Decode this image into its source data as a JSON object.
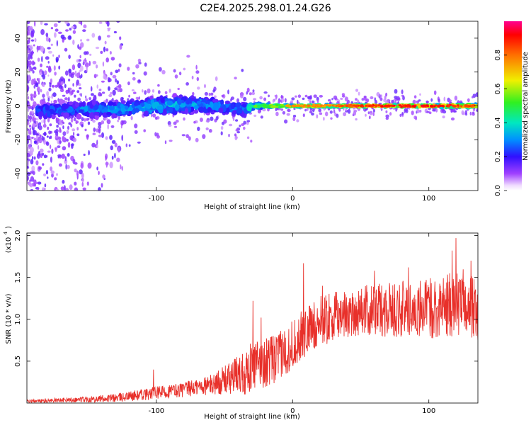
{
  "title": "C2E4.2025.298.01.24.G26",
  "chart_data": [
    {
      "type": "heatmap",
      "name": "spectrogram",
      "xlabel": "Height of straight line (km)",
      "ylabel": "Frequency (Hz)",
      "xlim": [
        -195,
        136
      ],
      "ylim": [
        -50,
        50
      ],
      "xticks": [
        -100,
        0,
        100
      ],
      "xtick_labels": [
        "-100",
        "0",
        "100"
      ],
      "yticks": [
        40,
        20,
        0,
        -20,
        -40
      ],
      "ytick_labels": [
        "40",
        "20",
        "0",
        "-20",
        "-40"
      ],
      "ridge": {
        "description": "dominant frequency band near 0 Hz",
        "x": [
          -185,
          -160,
          -130,
          -100,
          -70,
          -45,
          -35,
          -28,
          -20,
          0,
          25,
          50,
          75,
          100,
          125,
          136
        ],
        "center_hz": [
          -3,
          -2,
          -2,
          0,
          1,
          -1,
          -2,
          0,
          0,
          0,
          0,
          0,
          0,
          0,
          0,
          0
        ],
        "halfwidth_hz": [
          6,
          6,
          6,
          7,
          7,
          6,
          5,
          2.5,
          2,
          1.5,
          1.5,
          1.5,
          1.5,
          1.5,
          1.8,
          2
        ],
        "peak_amplitude": [
          0.3,
          0.3,
          0.35,
          0.4,
          0.35,
          0.3,
          0.35,
          0.55,
          0.65,
          0.8,
          0.8,
          0.9,
          0.95,
          0.95,
          0.9,
          0.85
        ]
      },
      "colorbar": {
        "label": "Normalized spectral amplitude",
        "range": [
          0,
          1
        ],
        "ticks": [
          0.0,
          0.2,
          0.4,
          0.6,
          0.8
        ],
        "tick_labels": [
          "0.0",
          "0.2",
          "0.4",
          "0.6",
          "0.8"
        ]
      }
    },
    {
      "type": "line",
      "name": "snr",
      "color": "#e8302a",
      "xlabel": "Height of straight line (km)",
      "ylabel": "SNR (10 * v/v)",
      "yscale_label": "(x10",
      "yscale_exp": "4",
      "ylabel_full": "SNR (10 * v/v) (x10^4)",
      "xlim": [
        -195,
        136
      ],
      "ylim": [
        0,
        2.03
      ],
      "xticks": [
        -100,
        0,
        100
      ],
      "xtick_labels": [
        "-100",
        "0",
        "100"
      ],
      "yticks": [
        0.5,
        1.0,
        1.5,
        2.0
      ],
      "ytick_labels": [
        "0.5",
        "1.0",
        "1.5",
        "2.0"
      ],
      "envelope": {
        "x": [
          -195,
          -160,
          -130,
          -110,
          -80,
          -60,
          -45,
          -35,
          -28,
          -20,
          -10,
          0,
          10,
          20,
          35,
          50,
          70,
          90,
          110,
          125,
          136
        ],
        "mean": [
          0.02,
          0.04,
          0.06,
          0.1,
          0.16,
          0.22,
          0.3,
          0.38,
          0.45,
          0.48,
          0.55,
          0.7,
          0.85,
          0.98,
          1.05,
          1.1,
          1.12,
          1.12,
          1.15,
          1.2,
          1.1
        ],
        "spread": [
          0.02,
          0.03,
          0.05,
          0.07,
          0.09,
          0.12,
          0.2,
          0.28,
          0.3,
          0.3,
          0.3,
          0.3,
          0.3,
          0.3,
          0.3,
          0.3,
          0.33,
          0.35,
          0.38,
          0.4,
          0.35
        ]
      },
      "peaks": [
        {
          "x": -102,
          "y": 0.4
        },
        {
          "x": -29,
          "y": 1.22
        },
        {
          "x": -23,
          "y": 1.02
        },
        {
          "x": 8,
          "y": 1.67
        },
        {
          "x": 22,
          "y": 1.4
        },
        {
          "x": 60,
          "y": 1.58
        },
        {
          "x": 85,
          "y": 1.62
        },
        {
          "x": 117,
          "y": 1.82
        },
        {
          "x": 120,
          "y": 1.97
        },
        {
          "x": 131,
          "y": 1.7
        }
      ]
    }
  ]
}
